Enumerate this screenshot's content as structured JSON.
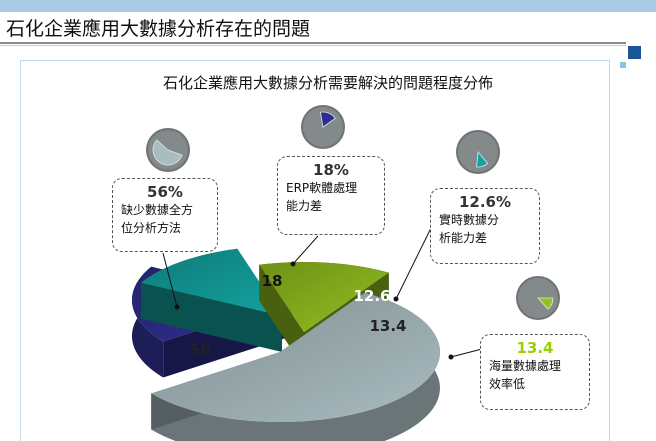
{
  "page": {
    "title": "石化企業應用大數據分析存在的問題"
  },
  "colors": {
    "slice_56": "#a9bcc0",
    "slice_18": "#2e2e8e",
    "slice_12_6": "#13a3a0",
    "slice_13_4": "#92c020",
    "accent": "#1a5598"
  },
  "chart_data": {
    "type": "pie",
    "title": "石化企業應用大數據分析需要解決的問題程度分佈",
    "slices": [
      {
        "label": "缺少數據全方位分析方法",
        "value": 56,
        "value_label": "56",
        "percent_label": "56%",
        "color": "#a9bcc0"
      },
      {
        "label": "ERP軟體處理能力差",
        "value": 18,
        "value_label": "18",
        "percent_label": "18%",
        "color": "#2e2e8e"
      },
      {
        "label": "實時數據分析能力差",
        "value": 12.6,
        "value_label": "12.6",
        "percent_label": "12.6%",
        "color": "#13a3a0"
      },
      {
        "label": "海量數據處理效率低",
        "value": 13.4,
        "value_label": "13.4",
        "percent_label": "13.4",
        "color": "#92c020"
      }
    ],
    "callouts": [
      {
        "pct": "56%",
        "desc": "缺少數據全方\n位分析方法"
      },
      {
        "pct": "18%",
        "desc": "ERP軟體處理\n能力差"
      },
      {
        "pct": "12.6%",
        "desc": "實時數據分\n析能力差"
      },
      {
        "pct": "13.4",
        "desc": "海量數據處理\n效率低"
      }
    ],
    "style": "exploded 3d pie"
  }
}
